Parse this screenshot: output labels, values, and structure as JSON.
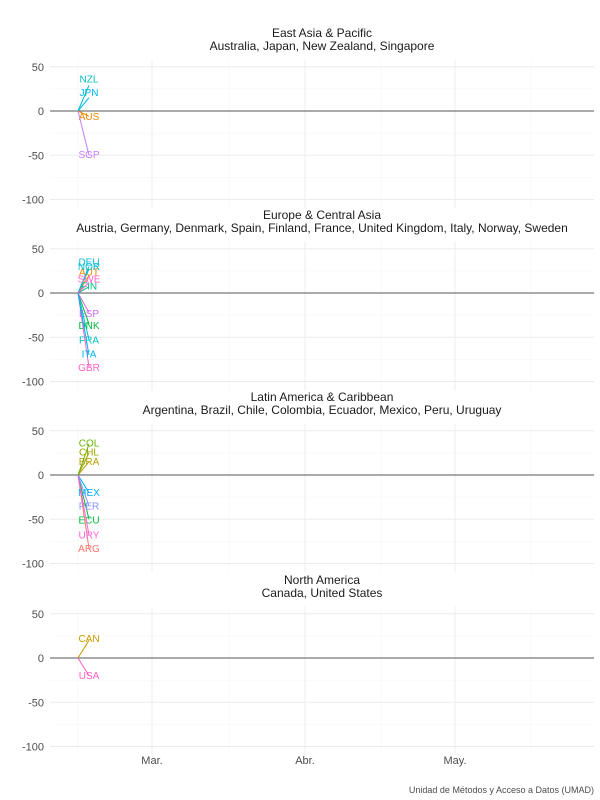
{
  "caption": "Unidad de Métodos y Acceso a Datos (UMAD)",
  "colors": {
    "ARG": "#F8766D",
    "AUS": "#E58700",
    "AUT": "#E58700",
    "BRA": "#B79F00",
    "CAN": "#C99800",
    "CHL": "#A3A500",
    "COL": "#6BB100",
    "DEU": "#00BCD8",
    "DNK": "#00BA38",
    "ECU": "#00BA38",
    "ESP": "#D169F5",
    "FIN": "#00C08B",
    "FRA": "#00BFC4",
    "GBR": "#FF61C3",
    "ITA": "#00B4F0",
    "JPN": "#00B4F0",
    "MEX": "#00A9FF",
    "NOR": "#00BCD8",
    "NZL": "#00BFC4",
    "PER": "#8494FF",
    "SGP": "#C77CFF",
    "SWE": "#FF61C3",
    "URY": "#FB61D7",
    "USA": "#FF61C3"
  },
  "chart_data": [
    {
      "type": "line",
      "title": "East Asia & Pacific",
      "subtitle": "Australia, Japan, New Zealand, Singapore",
      "x_tick_labels": [
        "Mar.",
        "Abr.",
        "May."
      ],
      "y_ticks": [
        50,
        0,
        -50,
        -100
      ],
      "ylim": [
        -110,
        58
      ],
      "series": [
        {
          "name": "AUS",
          "values": [
            0,
            -6
          ],
          "label_y": -6
        },
        {
          "name": "JPN",
          "values": [
            0,
            15
          ],
          "label_y": 21
        },
        {
          "name": "NZL",
          "values": [
            0,
            29
          ],
          "label_y": 36
        },
        {
          "name": "SGP",
          "values": [
            0,
            -50
          ],
          "label_y": -49
        }
      ]
    },
    {
      "type": "line",
      "title": "Europe & Central Asia",
      "subtitle": "Austria, Germany, Denmark, Spain, Finland, France, United Kingdom, Italy, Norway, Sweden",
      "x_tick_labels": [
        "Mar.",
        "Abr.",
        "May."
      ],
      "y_ticks": [
        50,
        0,
        -50,
        -100
      ],
      "ylim": [
        -110,
        58
      ],
      "series": [
        {
          "name": "AUT",
          "values": [
            0,
            20
          ],
          "label_y": 24
        },
        {
          "name": "DEU",
          "values": [
            0,
            30
          ],
          "label_y": 35
        },
        {
          "name": "DNK",
          "values": [
            0,
            -35
          ],
          "label_y": -37
        },
        {
          "name": "ESP",
          "values": [
            0,
            -22
          ],
          "label_y": -23
        },
        {
          "name": "FIN",
          "values": [
            0,
            7
          ],
          "label_y": 8
        },
        {
          "name": "FRA",
          "values": [
            0,
            -53
          ],
          "label_y": -53
        },
        {
          "name": "GBR",
          "values": [
            0,
            -84
          ],
          "label_y": -84
        },
        {
          "name": "ITA",
          "values": [
            0,
            -70
          ],
          "label_y": -69
        },
        {
          "name": "NOR",
          "values": [
            0,
            27
          ],
          "label_y": 30
        },
        {
          "name": "SWE",
          "values": [
            0,
            12
          ],
          "label_y": 16
        }
      ]
    },
    {
      "type": "line",
      "title": "Latin America & Caribbean",
      "subtitle": "Argentina, Brazil, Chile, Colombia, Ecuador, Mexico, Peru, Uruguay",
      "x_tick_labels": [
        "Mar.",
        "Abr.",
        "May."
      ],
      "y_ticks": [
        50,
        0,
        -50,
        -100
      ],
      "ylim": [
        -110,
        58
      ],
      "series": [
        {
          "name": "ARG",
          "values": [
            0,
            -83
          ],
          "label_y": -83
        },
        {
          "name": "BRA",
          "values": [
            0,
            15
          ],
          "label_y": 15
        },
        {
          "name": "CHL",
          "values": [
            0,
            25
          ],
          "label_y": 26
        },
        {
          "name": "COL",
          "values": [
            0,
            35
          ],
          "label_y": 36
        },
        {
          "name": "ECU",
          "values": [
            0,
            -50
          ],
          "label_y": -51
        },
        {
          "name": "MEX",
          "values": [
            0,
            -20
          ],
          "label_y": -20
        },
        {
          "name": "PER",
          "values": [
            0,
            -35
          ],
          "label_y": -35
        },
        {
          "name": "URY",
          "values": [
            0,
            -68
          ],
          "label_y": -68
        }
      ]
    },
    {
      "type": "line",
      "title": "North America",
      "subtitle": "Canada, United States",
      "x_tick_labels": [
        "Mar.",
        "Abr.",
        "May."
      ],
      "y_ticks": [
        50,
        0,
        -50,
        -100
      ],
      "ylim": [
        -110,
        58
      ],
      "series": [
        {
          "name": "CAN",
          "values": [
            0,
            20
          ],
          "label_y": 22
        },
        {
          "name": "USA",
          "values": [
            0,
            -20
          ],
          "label_y": -20
        }
      ]
    }
  ]
}
